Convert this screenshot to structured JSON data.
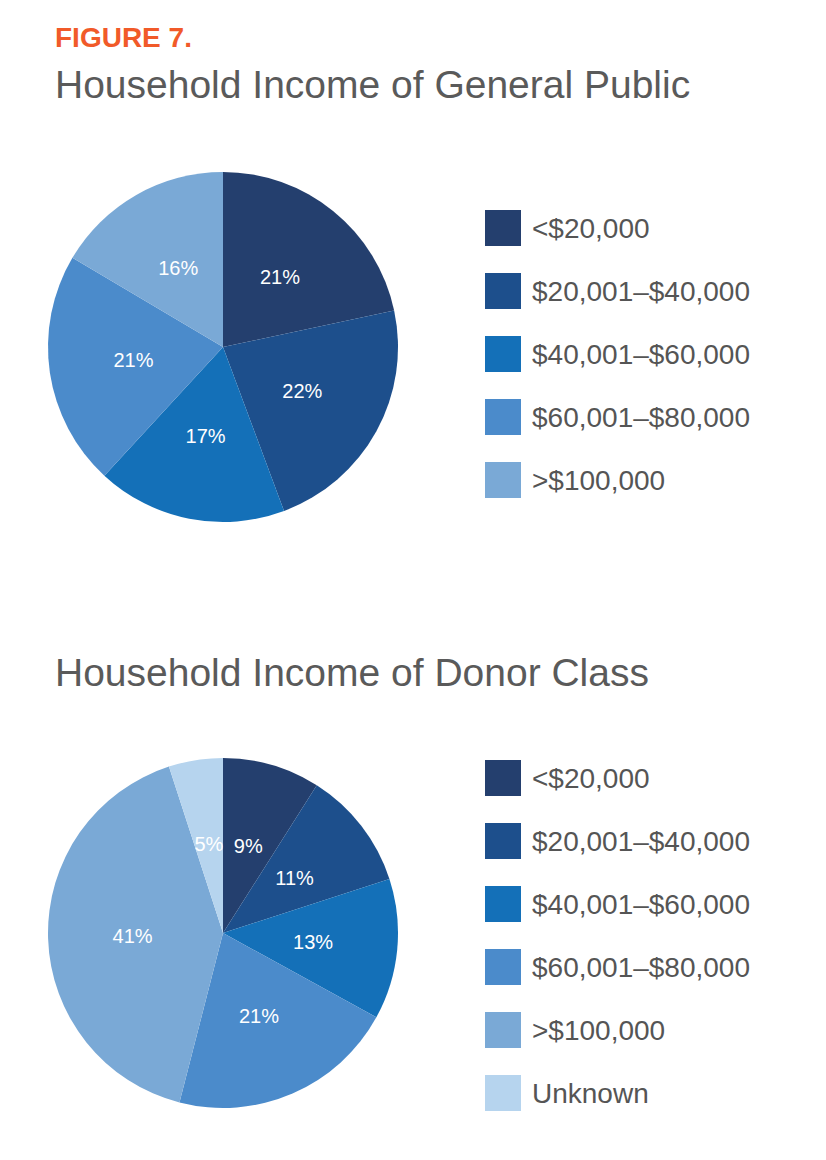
{
  "figure_label": "FIGURE 7.",
  "chart_data": [
    {
      "type": "pie",
      "title": "Household Income of General Public",
      "categories": [
        "<$20,000",
        "$20,001–$40,000",
        "$40,001–$60,000",
        "$60,001–$80,000",
        ">$100,000"
      ],
      "values": [
        21,
        22,
        17,
        21,
        16
      ],
      "value_labels": [
        "21%",
        "22%",
        "17%",
        "21%",
        "16%"
      ],
      "colors": [
        "#243f6e",
        "#1d4f8c",
        "#1470b8",
        "#4b8bcb",
        "#7aa9d6"
      ],
      "data_labels": true,
      "legend": "right"
    },
    {
      "type": "pie",
      "title": "Household Income of Donor Class",
      "categories": [
        "<$20,000",
        "$20,001–$40,000",
        "$40,001–$60,000",
        "$60,001–$80,000",
        ">$100,000",
        "Unknown"
      ],
      "values": [
        9,
        11,
        13,
        21,
        41,
        5
      ],
      "value_labels": [
        "9%",
        "11%",
        "13%",
        "21%",
        "41%",
        "5%"
      ],
      "colors": [
        "#243f6e",
        "#1d4f8c",
        "#1470b8",
        "#4b8bcb",
        "#7aa9d6",
        "#b6d4ee"
      ],
      "data_labels": true,
      "legend": "right"
    }
  ]
}
